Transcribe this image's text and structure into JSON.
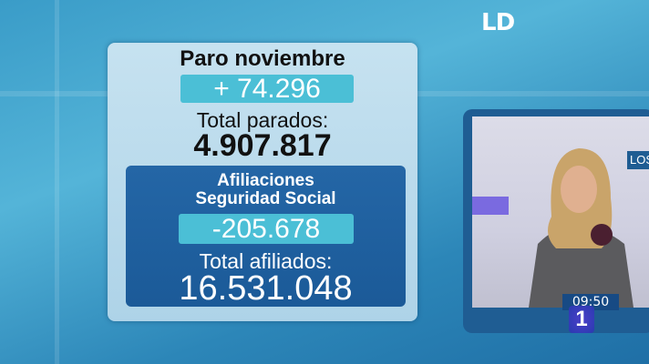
{
  "channel_logo": "LD",
  "panel": {
    "title": "Paro noviembre",
    "paro_change": "+ 74.296",
    "total_parados_label": "Total parados:",
    "total_parados": "4.907.817",
    "afiliaciones_line1": "Afiliaciones",
    "afiliaciones_line2": "Seguridad Social",
    "afiliaciones_change": "-205.678",
    "total_afiliados_label": "Total afiliados:",
    "total_afiliados": "16.531.048"
  },
  "video": {
    "clock": "09:50",
    "channel_number": "1",
    "backdrop_text": "LOS"
  },
  "colors": {
    "panel": "#b8d8ea",
    "highlight": "#4bbfd6",
    "dark_box": "#1e5e9e"
  }
}
